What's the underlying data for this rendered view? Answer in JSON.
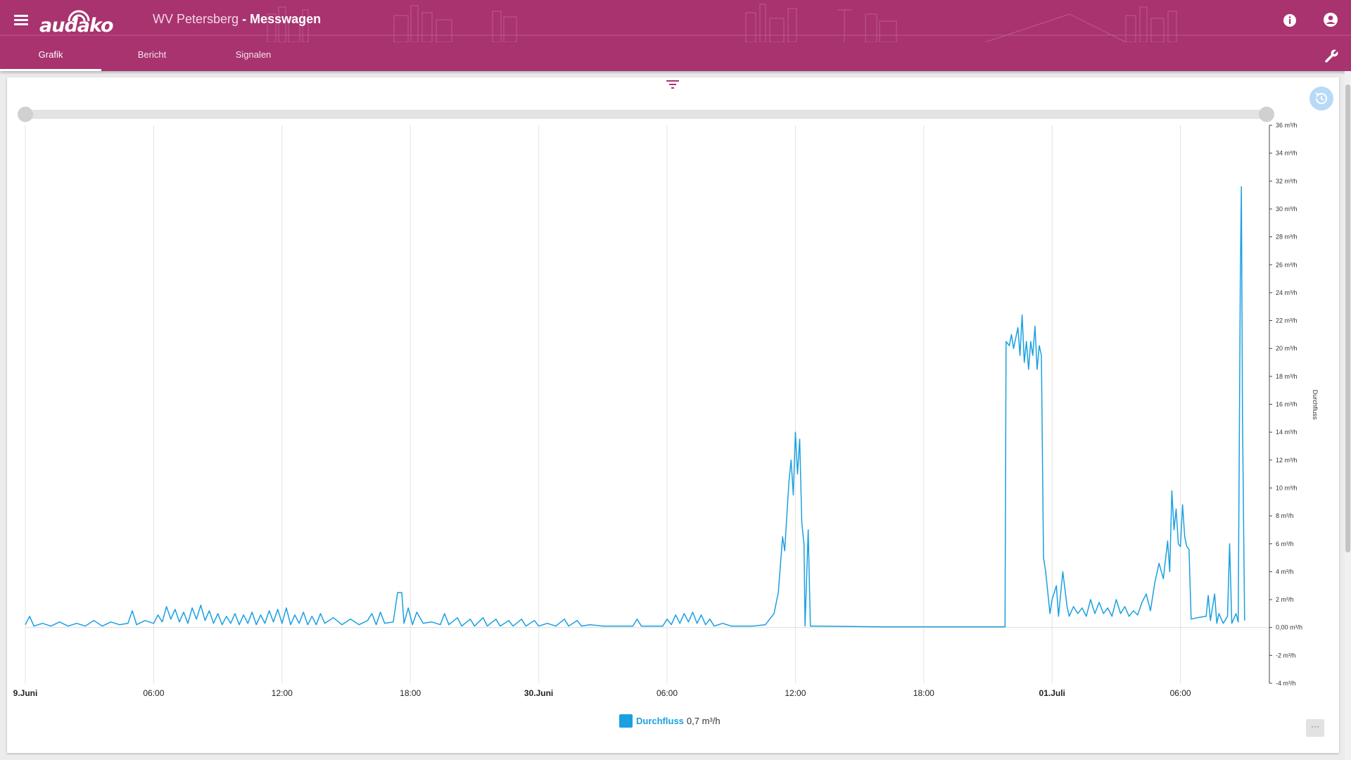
{
  "header": {
    "logo_text": "audako",
    "location": "WV Petersberg",
    "title": "- Messwagen",
    "info_icon": "info-icon",
    "account_icon": "account-circle-icon",
    "menu_icon": "menu-icon",
    "wrench_icon": "wrench-icon"
  },
  "tabs": [
    {
      "label": "Grafik",
      "active": true
    },
    {
      "label": "Bericht",
      "active": false
    },
    {
      "label": "Signalen",
      "active": false
    }
  ],
  "toolbar": {
    "filter_icon": "filter-icon",
    "history_icon": "history-icon",
    "more_label": "···"
  },
  "legend": {
    "name": "Durchfluss",
    "value": "0,7 m³/h"
  },
  "colors": {
    "header": "#a8336f",
    "series": "#1aa0e0",
    "history_button": "#b8d9f7"
  },
  "chart_data": {
    "type": "line",
    "ylabel": "Durchfluss",
    "ylim": [
      -4,
      36
    ],
    "y_ticks": [
      -4,
      -2,
      0,
      2,
      4,
      6,
      8,
      10,
      12,
      14,
      16,
      18,
      20,
      22,
      24,
      26,
      28,
      30,
      32,
      34,
      36
    ],
    "y_tick_labels": [
      "-4 m³/h",
      "-2 m³/h",
      "0,00 m³/h",
      "2 m³/h",
      "4 m³/h",
      "6 m³/h",
      "8 m³/h",
      "10 m³/h",
      "12 m³/h",
      "14 m³/h",
      "16 m³/h",
      "18 m³/h",
      "20 m³/h",
      "22 m³/h",
      "24 m³/h",
      "26 m³/h",
      "28 m³/h",
      "30 m³/h",
      "32 m³/h",
      "34 m³/h",
      "36 m³/h"
    ],
    "x_unit": "hours since first x-tick",
    "xlim": [
      0,
      58.2
    ],
    "x_ticks": [
      0,
      6,
      12,
      18,
      24,
      30,
      36,
      42,
      48,
      54
    ],
    "x_tick_labels": [
      "9.Juni",
      "06:00",
      "12:00",
      "18:00",
      "30.Juni",
      "06:00",
      "12:00",
      "18:00",
      "01.Juli",
      "06:00"
    ],
    "x_tick_bold": [
      true,
      false,
      false,
      false,
      true,
      false,
      false,
      false,
      true,
      false
    ],
    "grid": true,
    "legend_position": "bottom-center",
    "series": [
      {
        "name": "Durchfluss",
        "color": "#1aa0e0",
        "points": [
          [
            0,
            0.2
          ],
          [
            0.2,
            0.8
          ],
          [
            0.4,
            0.1
          ],
          [
            0.8,
            0.3
          ],
          [
            1.2,
            0.1
          ],
          [
            1.6,
            0.4
          ],
          [
            2,
            0.1
          ],
          [
            2.4,
            0.3
          ],
          [
            2.8,
            0.1
          ],
          [
            3.2,
            0.5
          ],
          [
            3.6,
            0.1
          ],
          [
            4,
            0.4
          ],
          [
            4.4,
            0.2
          ],
          [
            4.8,
            0.3
          ],
          [
            5,
            1.2
          ],
          [
            5.2,
            0.2
          ],
          [
            5.6,
            0.5
          ],
          [
            6,
            0.3
          ],
          [
            6.2,
            0.9
          ],
          [
            6.4,
            0.4
          ],
          [
            6.6,
            1.5
          ],
          [
            6.8,
            0.6
          ],
          [
            7,
            1.3
          ],
          [
            7.2,
            0.4
          ],
          [
            7.4,
            1.1
          ],
          [
            7.6,
            0.3
          ],
          [
            7.8,
            1.4
          ],
          [
            8,
            0.6
          ],
          [
            8.2,
            1.6
          ],
          [
            8.4,
            0.5
          ],
          [
            8.6,
            1.2
          ],
          [
            8.8,
            0.3
          ],
          [
            9,
            1
          ],
          [
            9.2,
            0.2
          ],
          [
            9.4,
            0.8
          ],
          [
            9.6,
            0.3
          ],
          [
            9.8,
            1
          ],
          [
            10,
            0.2
          ],
          [
            10.2,
            0.9
          ],
          [
            10.4,
            0.3
          ],
          [
            10.6,
            1.1
          ],
          [
            10.8,
            0.2
          ],
          [
            11,
            0.9
          ],
          [
            11.2,
            0.3
          ],
          [
            11.4,
            1.2
          ],
          [
            11.6,
            0.4
          ],
          [
            11.8,
            1.3
          ],
          [
            12,
            0.3
          ],
          [
            12.2,
            1.4
          ],
          [
            12.4,
            0.2
          ],
          [
            12.6,
            0.9
          ],
          [
            12.8,
            0.3
          ],
          [
            13,
            1.1
          ],
          [
            13.2,
            0.2
          ],
          [
            13.4,
            0.8
          ],
          [
            13.6,
            0.2
          ],
          [
            13.8,
            1
          ],
          [
            14,
            0.3
          ],
          [
            14.4,
            0.7
          ],
          [
            14.8,
            0.2
          ],
          [
            15.2,
            0.6
          ],
          [
            15.6,
            0.2
          ],
          [
            16,
            0.5
          ],
          [
            16.2,
            1
          ],
          [
            16.4,
            0.2
          ],
          [
            16.6,
            1.1
          ],
          [
            16.8,
            0.3
          ],
          [
            17.2,
            0.4
          ],
          [
            17.4,
            2.5
          ],
          [
            17.6,
            2.5
          ],
          [
            17.7,
            0.3
          ],
          [
            17.9,
            1.4
          ],
          [
            18.1,
            0.2
          ],
          [
            18.3,
            1.1
          ],
          [
            18.6,
            0.3
          ],
          [
            19,
            0.4
          ],
          [
            19.4,
            0.2
          ],
          [
            19.6,
            1
          ],
          [
            19.8,
            0.2
          ],
          [
            20.2,
            0.7
          ],
          [
            20.4,
            0.1
          ],
          [
            20.8,
            0.6
          ],
          [
            21,
            0.1
          ],
          [
            21.4,
            0.7
          ],
          [
            21.6,
            0.1
          ],
          [
            22,
            0.6
          ],
          [
            22.2,
            0.1
          ],
          [
            22.6,
            0.5
          ],
          [
            22.8,
            0.1
          ],
          [
            23.2,
            0.6
          ],
          [
            23.4,
            0.1
          ],
          [
            23.8,
            0.5
          ],
          [
            24,
            0.1
          ],
          [
            24.4,
            0.3
          ],
          [
            24.8,
            0.1
          ],
          [
            25.2,
            0.6
          ],
          [
            25.4,
            0.1
          ],
          [
            25.8,
            0.5
          ],
          [
            26,
            0.1
          ],
          [
            26.4,
            0.2
          ],
          [
            27,
            0.1
          ],
          [
            28,
            0.1
          ],
          [
            28.4,
            0.1
          ],
          [
            28.6,
            0.6
          ],
          [
            28.8,
            0.1
          ],
          [
            29.4,
            0.1
          ],
          [
            29.8,
            0.1
          ],
          [
            30,
            0.6
          ],
          [
            30.2,
            0.2
          ],
          [
            30.4,
            0.9
          ],
          [
            30.6,
            0.3
          ],
          [
            30.8,
            1
          ],
          [
            31,
            0.4
          ],
          [
            31.2,
            1.1
          ],
          [
            31.4,
            0.3
          ],
          [
            31.6,
            0.9
          ],
          [
            31.8,
            0.2
          ],
          [
            32,
            0.6
          ],
          [
            32.2,
            0.1
          ],
          [
            32.6,
            0.3
          ],
          [
            33,
            0.1
          ],
          [
            34,
            0.1
          ],
          [
            34.6,
            0.2
          ],
          [
            35,
            1
          ],
          [
            35.2,
            2.5
          ],
          [
            35.4,
            6.5
          ],
          [
            35.5,
            5.5
          ],
          [
            35.6,
            8
          ],
          [
            35.7,
            10.5
          ],
          [
            35.8,
            12
          ],
          [
            35.9,
            9.5
          ],
          [
            36,
            14
          ],
          [
            36.1,
            11
          ],
          [
            36.2,
            13.5
          ],
          [
            36.3,
            7.5
          ],
          [
            36.4,
            6
          ],
          [
            36.45,
            0.1
          ],
          [
            36.6,
            7
          ],
          [
            36.7,
            0.1
          ],
          [
            37,
            0.1
          ],
          [
            40,
            0.05
          ],
          [
            44,
            0.05
          ],
          [
            45.8,
            0.05
          ],
          [
            45.85,
            20.5
          ],
          [
            46,
            20.2
          ],
          [
            46.1,
            21
          ],
          [
            46.2,
            20
          ],
          [
            46.4,
            21.5
          ],
          [
            46.5,
            19.5
          ],
          [
            46.6,
            22.4
          ],
          [
            46.7,
            19
          ],
          [
            46.8,
            20.5
          ],
          [
            46.9,
            18.5
          ],
          [
            47,
            20.5
          ],
          [
            47.1,
            19.5
          ],
          [
            47.2,
            21.6
          ],
          [
            47.3,
            18.5
          ],
          [
            47.4,
            20.2
          ],
          [
            47.5,
            19.5
          ],
          [
            47.6,
            5
          ],
          [
            47.7,
            4
          ],
          [
            47.8,
            2.5
          ],
          [
            47.9,
            1
          ],
          [
            48,
            2
          ],
          [
            48.2,
            3
          ],
          [
            48.3,
            0.8
          ],
          [
            48.5,
            4
          ],
          [
            48.7,
            1.5
          ],
          [
            48.8,
            0.8
          ],
          [
            49,
            1.5
          ],
          [
            49.2,
            1
          ],
          [
            49.4,
            1.4
          ],
          [
            49.6,
            0.8
          ],
          [
            49.8,
            2
          ],
          [
            50,
            1
          ],
          [
            50.2,
            1.8
          ],
          [
            50.4,
            1
          ],
          [
            50.6,
            1.4
          ],
          [
            50.8,
            0.8
          ],
          [
            51,
            2
          ],
          [
            51.2,
            1
          ],
          [
            51.4,
            1.5
          ],
          [
            51.6,
            0.8
          ],
          [
            51.8,
            1.2
          ],
          [
            52,
            0.9
          ],
          [
            52.2,
            1.8
          ],
          [
            52.4,
            2.4
          ],
          [
            52.6,
            1.2
          ],
          [
            52.8,
            3.2
          ],
          [
            53,
            4.6
          ],
          [
            53.2,
            3.5
          ],
          [
            53.4,
            6.2
          ],
          [
            53.5,
            4
          ],
          [
            53.6,
            9.8
          ],
          [
            53.7,
            7
          ],
          [
            53.8,
            8.5
          ],
          [
            53.9,
            6
          ],
          [
            54,
            5.8
          ],
          [
            54.1,
            8.8
          ],
          [
            54.2,
            6.5
          ],
          [
            54.3,
            5.8
          ],
          [
            54.4,
            5.6
          ],
          [
            54.5,
            0.6
          ],
          [
            54.8,
            0.7
          ],
          [
            55.2,
            0.8
          ],
          [
            55.3,
            2.3
          ],
          [
            55.4,
            0.5
          ],
          [
            55.6,
            2.4
          ],
          [
            55.7,
            0.3
          ],
          [
            55.8,
            1
          ],
          [
            56,
            0.3
          ],
          [
            56.2,
            0.8
          ],
          [
            56.3,
            6
          ],
          [
            56.4,
            0.3
          ],
          [
            56.6,
            1
          ],
          [
            56.7,
            0.4
          ],
          [
            56.8,
            25
          ],
          [
            56.85,
            31.6
          ],
          [
            56.9,
            15
          ],
          [
            57,
            0.5
          ]
        ]
      }
    ]
  }
}
